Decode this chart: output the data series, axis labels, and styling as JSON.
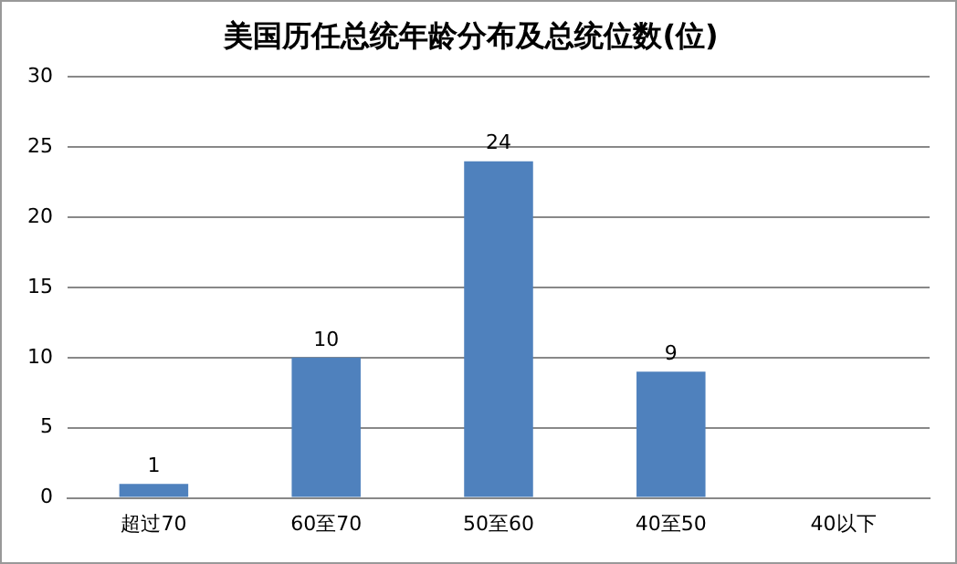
{
  "chart_data": {
    "type": "bar",
    "title": "美国历任总统年龄分布及总统位数(位)",
    "categories": [
      "超过70",
      "60至70",
      "50至60",
      "40至50",
      "40以下"
    ],
    "values": [
      1,
      10,
      24,
      9,
      0
    ],
    "value_labels": [
      "1",
      "10",
      "24",
      "9",
      null
    ],
    "color": "#4f81bd",
    "ylim": [
      0,
      30
    ],
    "yticks": [
      0,
      5,
      10,
      15,
      20,
      25,
      30
    ],
    "grid": "y"
  }
}
